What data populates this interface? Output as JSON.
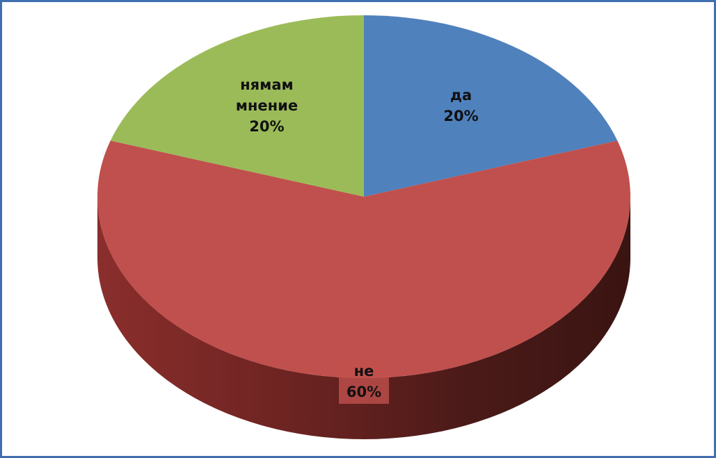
{
  "chart_data": {
    "type": "pie",
    "categories": [
      "да",
      "не",
      "нямам мнение"
    ],
    "values": [
      20,
      60,
      20
    ],
    "value_labels": [
      "20%",
      "60%",
      "20%"
    ],
    "colors": [
      "#4f81bd",
      "#c0504d",
      "#9bbb59"
    ]
  }
}
